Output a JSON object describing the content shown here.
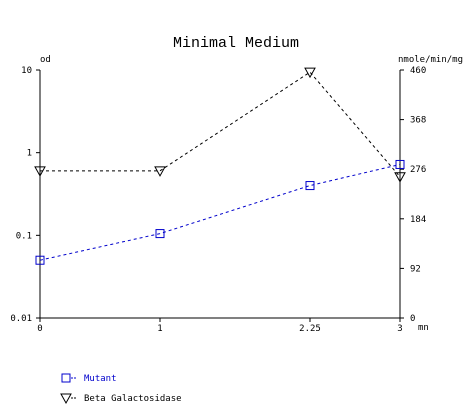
{
  "chart_data": {
    "type": "line",
    "title": "Minimal Medium",
    "x": [
      0,
      1,
      2.25,
      3
    ],
    "x_tick_labels": [
      "0",
      "1",
      "2.25",
      "3"
    ],
    "xlabel": "mn",
    "xlim": [
      0,
      3
    ],
    "y_left": {
      "label": "od",
      "scale": "log",
      "lim": [
        0.01,
        10
      ],
      "ticks": [
        0.01,
        0.1,
        1,
        10
      ],
      "tick_labels": [
        "0.01",
        "0.1",
        "1",
        "10"
      ]
    },
    "y_right": {
      "label": "nmole/min/mg",
      "scale": "linear",
      "lim": [
        0,
        460
      ],
      "ticks": [
        0,
        92,
        184,
        276,
        368,
        460
      ],
      "tick_labels": [
        "0",
        "92",
        "184",
        "276",
        "368",
        "460"
      ]
    },
    "series": [
      {
        "name": "Mutant",
        "axis": "left",
        "marker": "square",
        "line": "dashed",
        "color": "#0000cc",
        "values": [
          0.05,
          0.105,
          0.4,
          0.72
        ]
      },
      {
        "name": "Beta Galactosidase",
        "axis": "right",
        "marker": "triangle-down",
        "line": "dashed",
        "color": "#000000",
        "values": [
          273,
          273,
          456,
          262
        ]
      }
    ],
    "legend_position": "bottom-left",
    "grid": false
  }
}
